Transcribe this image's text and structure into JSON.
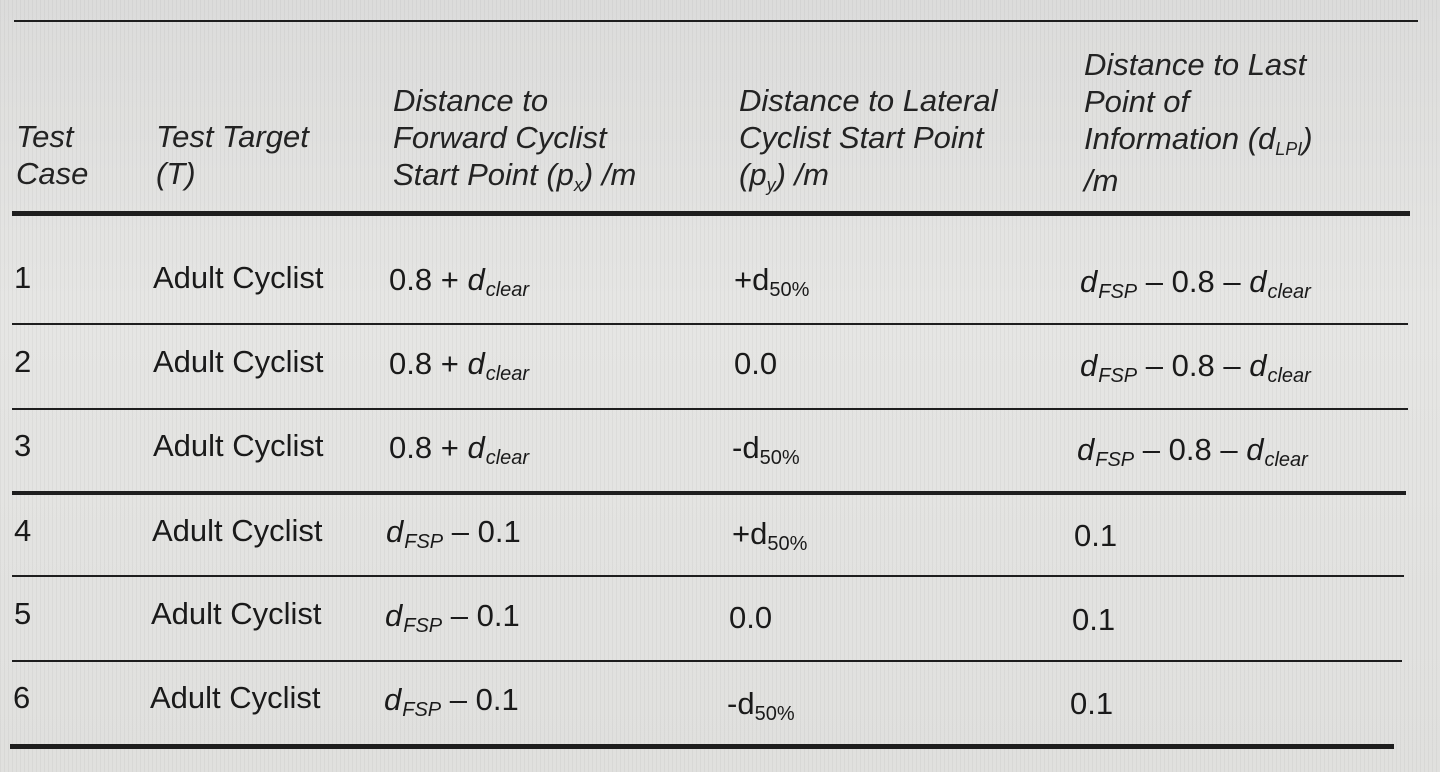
{
  "table": {
    "headers": [
      [
        "Test",
        "Case"
      ],
      [
        "Test Target",
        "(T)"
      ],
      [
        "Distance to",
        "Forward Cyclist",
        "Start Point (p",
        "x",
        ") /m"
      ],
      [
        "Distance to Lateral",
        "Cyclist Start Point",
        "(p",
        "y",
        ") /m"
      ],
      [
        "Distance to Last",
        "Point of",
        "Information (d",
        "LPI",
        ")",
        "/m"
      ]
    ],
    "rows": [
      {
        "case": "1",
        "target": "Adult Cyclist",
        "px": {
          "pre": "0.8 + ",
          "var": "d",
          "sub": "clear",
          "post": ""
        },
        "py": {
          "pre": "+d",
          "sub": "50%"
        },
        "dlpi": {
          "var": "d",
          "sub": "FSP",
          "mid": " – 0.8 – ",
          "var2": "d",
          "sub2": "clear"
        }
      },
      {
        "case": "2",
        "target": "Adult Cyclist",
        "px": {
          "pre": "0.8 + ",
          "var": "d",
          "sub": "clear",
          "post": ""
        },
        "py": {
          "pre": "0.0",
          "sub": ""
        },
        "dlpi": {
          "var": "d",
          "sub": "FSP",
          "mid": " – 0.8 – ",
          "var2": "d",
          "sub2": "clear"
        }
      },
      {
        "case": "3",
        "target": "Adult Cyclist",
        "px": {
          "pre": "0.8 + ",
          "var": "d",
          "sub": "clear",
          "post": ""
        },
        "py": {
          "pre": "-d",
          "sub": "50%"
        },
        "dlpi": {
          "var": "d",
          "sub": "FSP",
          "mid": " – 0.8 – ",
          "var2": "d",
          "sub2": "clear"
        }
      },
      {
        "case": "4",
        "target": "Adult Cyclist",
        "px": {
          "pre": "",
          "var": "d",
          "sub": "FSP",
          "post": " – 0.1"
        },
        "py": {
          "pre": "+d",
          "sub": "50%"
        },
        "dlpi": {
          "text": "0.1"
        }
      },
      {
        "case": "5",
        "target": "Adult Cyclist",
        "px": {
          "pre": "",
          "var": "d",
          "sub": "FSP",
          "post": " – 0.1"
        },
        "py": {
          "pre": "0.0",
          "sub": ""
        },
        "dlpi": {
          "text": "0.1"
        }
      },
      {
        "case": "6",
        "target": "Adult Cyclist",
        "px": {
          "pre": "",
          "var": "d",
          "sub": "FSP",
          "post": " – 0.1"
        },
        "py": {
          "pre": "-d",
          "sub": "50%"
        },
        "dlpi": {
          "text": "0.1"
        }
      }
    ]
  },
  "colors": {
    "paper": "#e3e3e1",
    "ink": "#1c1c1c"
  }
}
